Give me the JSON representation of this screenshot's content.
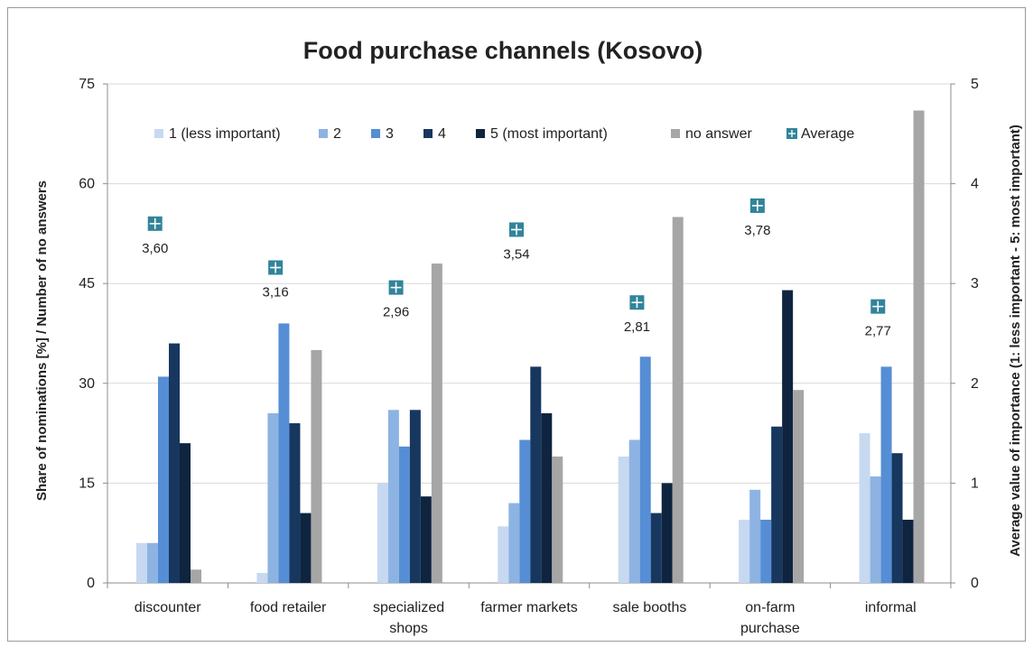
{
  "chart_data": {
    "type": "bar",
    "title": "Food purchase channels (Kosovo)",
    "categories": [
      [
        "discounter"
      ],
      [
        "food retailer"
      ],
      [
        "specialized",
        "shops"
      ],
      [
        "farmer markets"
      ],
      [
        "sale booths"
      ],
      [
        "on-farm",
        "purchase"
      ],
      [
        "informal"
      ]
    ],
    "series": [
      {
        "name": "1 (less important)",
        "color": "#c6d9f1",
        "values": [
          6,
          1.5,
          15,
          8.5,
          19,
          9.5,
          22.5
        ]
      },
      {
        "name": "2",
        "color": "#8db3e2",
        "values": [
          6,
          25.5,
          26,
          12,
          21.5,
          14,
          16
        ]
      },
      {
        "name": "3",
        "color": "#558ed5",
        "values": [
          31,
          39,
          20.5,
          21.5,
          34,
          9.5,
          32.5
        ]
      },
      {
        "name": "4",
        "color": "#17375e",
        "values": [
          36,
          24,
          26,
          32.5,
          10.5,
          23.5,
          19.5
        ]
      },
      {
        "name": "5 (most important)",
        "color": "#0f243e",
        "values": [
          21,
          10.5,
          13,
          25.5,
          15,
          44,
          9.5
        ]
      },
      {
        "name": "no answer",
        "color": "#a6a6a6",
        "values": [
          2,
          35,
          48,
          19,
          55,
          29,
          71
        ]
      }
    ],
    "average": {
      "name": "Average",
      "color": "#31849b",
      "values": [
        3.6,
        3.16,
        2.96,
        3.54,
        2.81,
        3.78,
        2.77
      ],
      "labels": [
        "3,60",
        "3,16",
        "2,96",
        "3,54",
        "2,81",
        "3,78",
        "2,77"
      ]
    },
    "y_left": {
      "label": "Share of nominations [%] / Number of no answers",
      "min": 0,
      "max": 75,
      "ticks": [
        "0",
        "15",
        "30",
        "45",
        "60",
        "75"
      ]
    },
    "y_right": {
      "label": "Average value of importance (1: less important - 5: most important)",
      "min": 0,
      "max": 5,
      "ticks": [
        "0",
        "1",
        "2",
        "3",
        "4",
        "5"
      ]
    },
    "grid": true,
    "legend_position": "top"
  }
}
